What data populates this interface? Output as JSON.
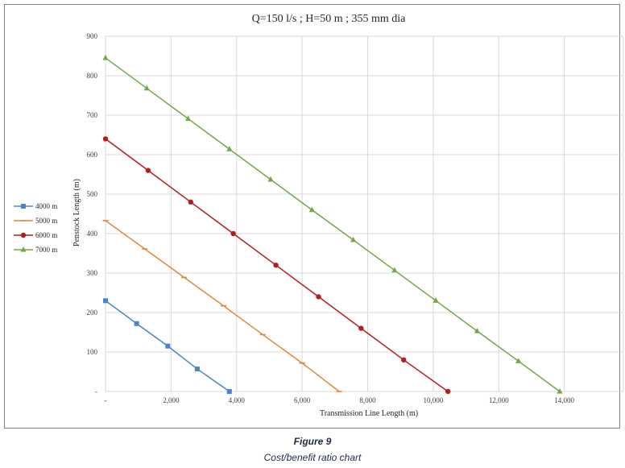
{
  "chart_data": {
    "type": "line",
    "title": "Q=150 l/s ; H=50 m ; 355 mm dia",
    "xlabel": "Transmission Line Length (m)",
    "ylabel": "Penstock Length (m)",
    "xlim": [
      0,
      16000
    ],
    "ylim": [
      0,
      900
    ],
    "xticks": [
      0,
      2000,
      4000,
      6000,
      8000,
      10000,
      12000,
      14000
    ],
    "xtick_labels": [
      "-",
      "2,000",
      "4,000",
      "6,000",
      "8,000",
      "10,000",
      "12,000",
      "14,000"
    ],
    "yticks": [
      0,
      100,
      200,
      300,
      400,
      500,
      600,
      700,
      800,
      900
    ],
    "ytick_labels": [
      "-",
      "100",
      "200",
      "300",
      "400",
      "500",
      "600",
      "700",
      "800",
      "900"
    ],
    "grid": true,
    "legend_position": "left",
    "series": [
      {
        "name": "4000 m",
        "color": "#4a86c5",
        "marker": "square",
        "x": [
          0,
          950,
          1900,
          2800,
          3780
        ],
        "y": [
          230,
          172,
          115,
          57,
          0
        ]
      },
      {
        "name": "5000 m",
        "color": "#e0883a",
        "marker": "dash",
        "x": [
          0,
          1200,
          2400,
          3600,
          4800,
          6000,
          7130
        ],
        "y": [
          433,
          361,
          289,
          217,
          144,
          72,
          0
        ]
      },
      {
        "name": "6000 m",
        "color": "#b01e1e",
        "marker": "circle",
        "x": [
          0,
          1300,
          2600,
          3900,
          5200,
          6500,
          7800,
          9100,
          10450
        ],
        "y": [
          640,
          560,
          480,
          400,
          320,
          240,
          160,
          80,
          0
        ]
      },
      {
        "name": "7000 m",
        "color": "#73a845",
        "marker": "triangle",
        "x": [
          0,
          1260,
          2520,
          3780,
          5040,
          6300,
          7560,
          8820,
          10080,
          11340,
          12600,
          13860
        ],
        "y": [
          845,
          768,
          691,
          614,
          537,
          460,
          384,
          307,
          230,
          153,
          77,
          0
        ]
      }
    ]
  },
  "caption": {
    "figure": "Figure 9",
    "text": "Cost/benefit ratio chart"
  }
}
